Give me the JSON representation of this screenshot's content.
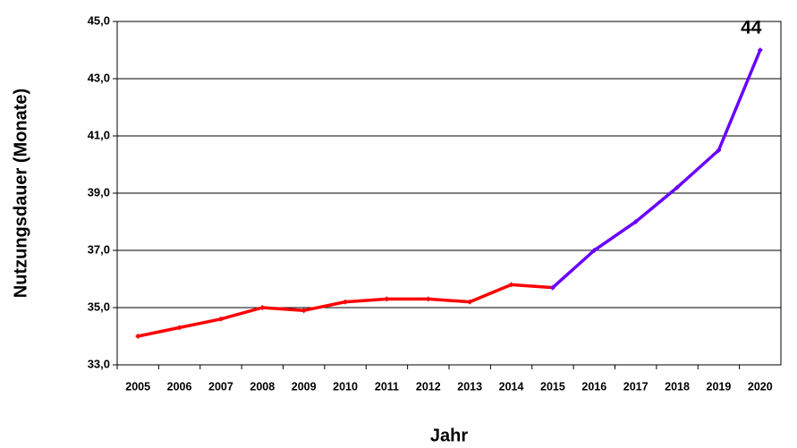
{
  "chart_data": {
    "type": "line",
    "x_label": "Jahr",
    "y_label": "Nutzungsdauer (Monate)",
    "categories": [
      "2005",
      "2006",
      "2007",
      "2008",
      "2009",
      "2010",
      "2011",
      "2012",
      "2013",
      "2014",
      "2015",
      "2016",
      "2017",
      "2018",
      "2019",
      "2020"
    ],
    "series": [
      {
        "color": "#ff0000",
        "values": [
          34.0,
          34.3,
          34.6,
          35.0,
          34.9,
          35.2,
          35.3,
          35.3,
          35.2,
          35.8,
          35.7,
          null,
          null,
          null,
          null,
          null
        ]
      },
      {
        "color": "#6a00ff",
        "values": [
          null,
          null,
          null,
          null,
          null,
          null,
          null,
          null,
          null,
          null,
          35.7,
          37.0,
          38.0,
          39.2,
          40.5,
          44.0
        ],
        "value_labels": [
          null,
          null,
          null,
          null,
          null,
          null,
          null,
          null,
          null,
          null,
          null,
          null,
          null,
          null,
          null,
          "44"
        ]
      }
    ],
    "ylim": [
      33,
      45
    ],
    "yticks": [
      {
        "value": 33,
        "label": "33,0"
      },
      {
        "value": 35,
        "label": "35,0"
      },
      {
        "value": 37,
        "label": "37,0"
      },
      {
        "value": 39,
        "label": "39,0"
      },
      {
        "value": 41,
        "label": "41,0"
      },
      {
        "value": 43,
        "label": "43,0"
      },
      {
        "value": 45,
        "label": "45,0"
      }
    ],
    "grid": true
  }
}
